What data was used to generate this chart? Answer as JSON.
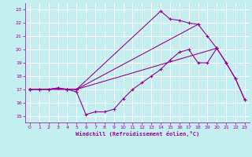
{
  "xlabel": "Windchill (Refroidissement éolien,°C)",
  "xlim": [
    -0.5,
    23.5
  ],
  "ylim": [
    14.5,
    23.5
  ],
  "xticks": [
    0,
    1,
    2,
    3,
    4,
    5,
    6,
    7,
    8,
    9,
    10,
    11,
    12,
    13,
    14,
    15,
    16,
    17,
    18,
    19,
    20,
    21,
    22,
    23
  ],
  "yticks": [
    15,
    16,
    17,
    18,
    19,
    20,
    21,
    22,
    23
  ],
  "bg_color": "#c5eef0",
  "grid_color": "#ffffff",
  "line_color": "#990099",
  "lines": [
    {
      "x": [
        0,
        1,
        2,
        3,
        4,
        5,
        6,
        7,
        8,
        9,
        10,
        11,
        12,
        13,
        14,
        15,
        16,
        17,
        18,
        19,
        20,
        21,
        22,
        23
      ],
      "y": [
        17,
        17,
        17,
        17.1,
        17,
        16.8,
        15.1,
        15.3,
        15.3,
        15.5,
        16.3,
        17.0,
        17.5,
        18.0,
        18.5,
        19.2,
        19.8,
        20.0,
        19.0,
        19.0,
        20.1,
        19.0,
        17.8,
        16.2
      ]
    },
    {
      "x": [
        0,
        1,
        2,
        3,
        4,
        5,
        14,
        15,
        16,
        17,
        18,
        19,
        20,
        21,
        22,
        23
      ],
      "y": [
        17,
        17,
        17,
        17.1,
        17,
        17.0,
        22.9,
        22.3,
        22.2,
        22.0,
        21.9,
        21.0,
        20.1,
        19.0,
        17.8,
        16.2
      ]
    },
    {
      "x": [
        0,
        4,
        5,
        20
      ],
      "y": [
        17,
        17,
        17,
        20.1
      ]
    },
    {
      "x": [
        0,
        4,
        5,
        18
      ],
      "y": [
        17,
        17,
        17,
        21.9
      ]
    }
  ]
}
